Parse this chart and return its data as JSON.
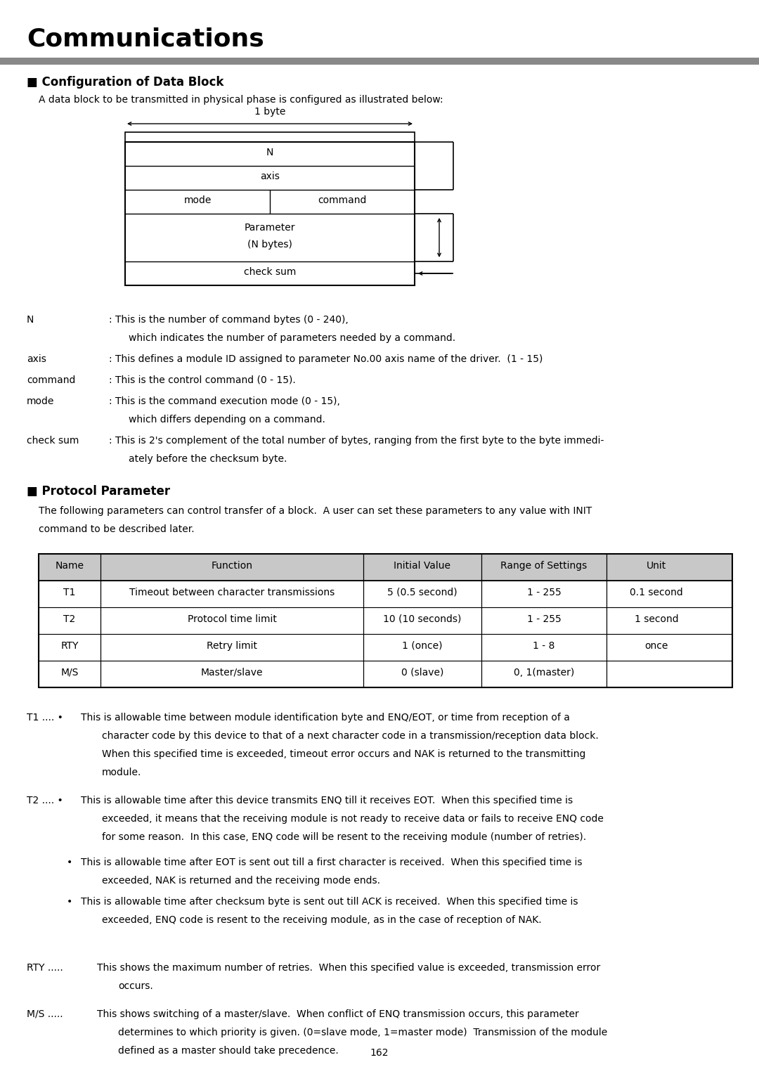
{
  "title": "Communications",
  "title_fontsize": 26,
  "section1_title": "■ Configuration of Data Block",
  "section1_intro": "A data block to be transmitted in physical phase is configured as illustrated below:",
  "section2_title": "■ Protocol Parameter",
  "section2_intro1": "The following parameters can control transfer of a block.  A user can set these parameters to any value with INIT",
  "section2_intro2": "command to be described later.",
  "table_headers": [
    "Name",
    "Function",
    "Initial Value",
    "Range of Settings",
    "Unit"
  ],
  "table_rows": [
    [
      "T1",
      "Timeout between character transmissions",
      "5 (0.5 second)",
      "1 - 255",
      "0.1 second"
    ],
    [
      "T2",
      "Protocol time limit",
      "10 (10 seconds)",
      "1 - 255",
      "1 second"
    ],
    [
      "RTY",
      "Retry limit",
      "1 (once)",
      "1 - 8",
      "once"
    ],
    [
      "M/S",
      "Master/slave",
      "0 (slave)",
      "0, 1(master)",
      ""
    ]
  ],
  "page_number": "162",
  "bg_color": "#ffffff",
  "text_color": "#000000",
  "header_bg": "#c8c8c8",
  "separator_color": "#888888"
}
